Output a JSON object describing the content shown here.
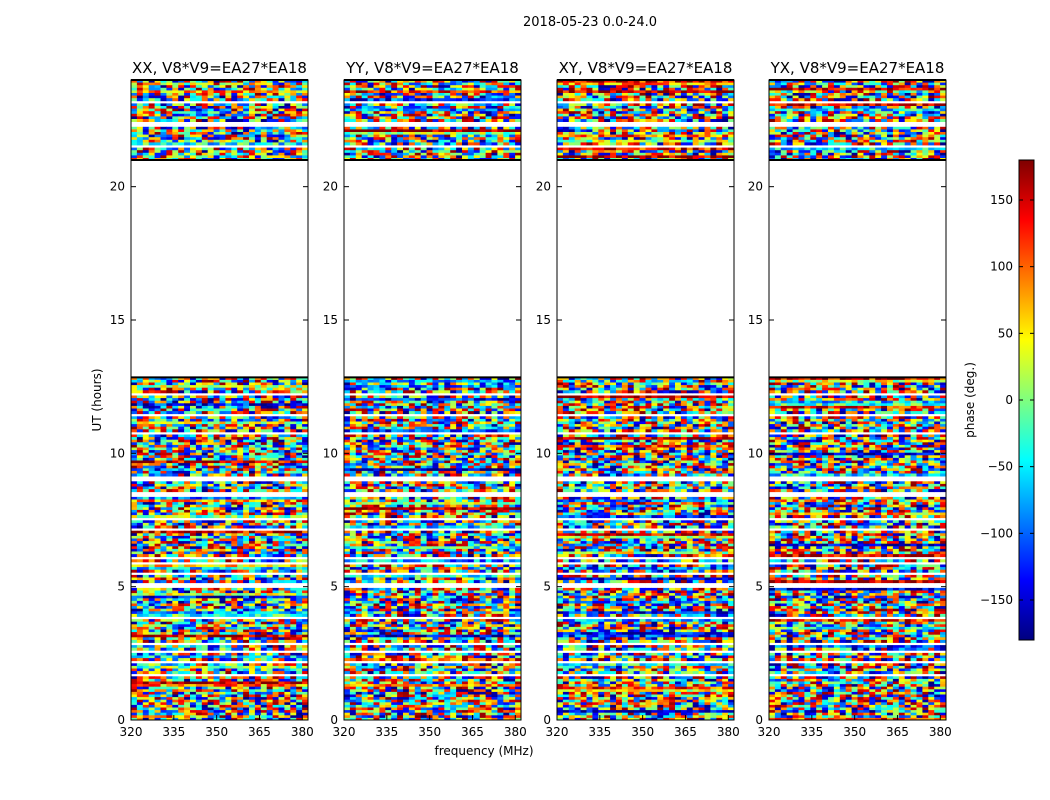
{
  "chart_data": {
    "type": "heatmap",
    "title": "2018-05-23 0.0-24.0",
    "xlabel": "frequency (MHz)",
    "ylabel": "UT (hours)",
    "xlim": [
      320,
      382
    ],
    "ylim": [
      0,
      24
    ],
    "x_ticks": [
      "320",
      "335",
      "350",
      "365",
      "380"
    ],
    "y_ticks": [
      "0",
      "5",
      "10",
      "15",
      "20"
    ],
    "panels": [
      {
        "title": "XX, V8*V9=EA27*EA18",
        "polarization": "XX"
      },
      {
        "title": "YY, V8*V9=EA27*EA18",
        "polarization": "YY"
      },
      {
        "title": "XY, V8*V9=EA27*EA18",
        "polarization": "XY"
      },
      {
        "title": "YX, V8*V9=EA27*EA18",
        "polarization": "YX"
      }
    ],
    "data_ranges_ut_hours": [
      [
        0,
        12.85
      ],
      [
        21.0,
        24.0
      ]
    ],
    "flagged_gap_ut_hours": [
      12.85,
      21.0
    ],
    "blank_row_ut_hours": [
      1.75,
      2.2,
      2.6,
      2.9,
      3.9,
      5.1,
      5.5,
      5.9,
      6.1,
      7.2,
      7.6,
      8.5,
      9.1,
      10.8,
      11.5,
      12.3,
      21.6,
      22.4,
      23.2
    ],
    "colorbar": {
      "label": "phase (deg.)",
      "range": [
        -180,
        180
      ],
      "ticks": [
        "150",
        "100",
        "50",
        "0",
        "−50",
        "−100",
        "−150"
      ],
      "colormap": "jet"
    }
  }
}
